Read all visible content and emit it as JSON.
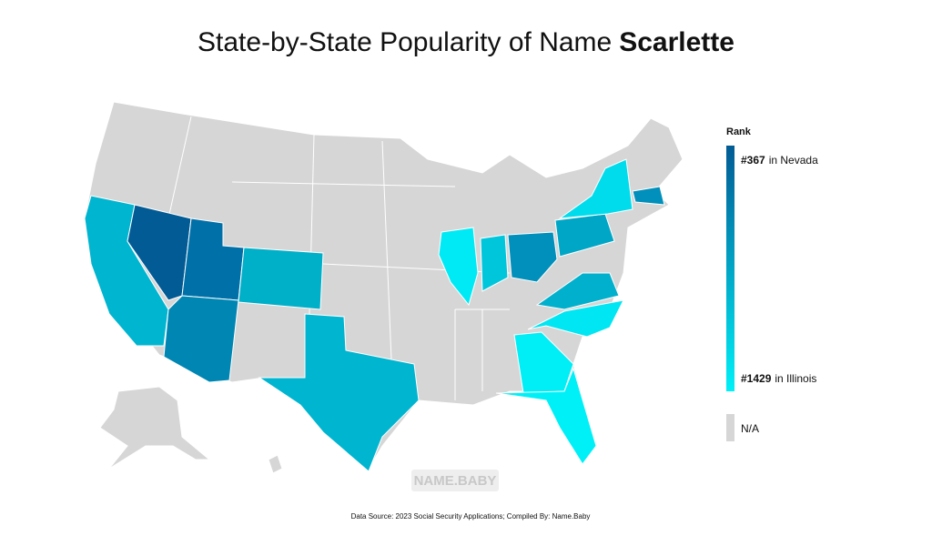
{
  "header": {
    "title": "State-by-State Popularity of Name",
    "name": "Scarlette"
  },
  "legend": {
    "title": "Rank",
    "top": {
      "rank": "#367",
      "place": "in Nevada"
    },
    "bottom": {
      "rank": "#1429",
      "place": "in Illinois"
    },
    "na": "N/A"
  },
  "watermark": "NAME.BABY",
  "source": "Data Source: 2023 Social Security Applications; Compiled By: Name.Baby"
}
